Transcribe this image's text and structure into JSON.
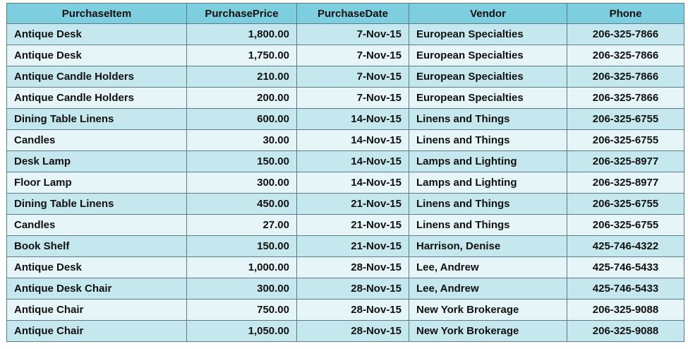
{
  "table": {
    "headers": [
      "PurchaseItem",
      "PurchasePrice",
      "PurchaseDate",
      "Vendor",
      "Phone"
    ],
    "rows": [
      [
        "Antique Desk",
        "1,800.00",
        "7-Nov-15",
        "European Specialties",
        "206-325-7866"
      ],
      [
        "Antique Desk",
        "1,750.00",
        "7-Nov-15",
        "European Specialties",
        "206-325-7866"
      ],
      [
        "Antique Candle Holders",
        "210.00",
        "7-Nov-15",
        "European Specialties",
        "206-325-7866"
      ],
      [
        "Antique Candle Holders",
        "200.00",
        "7-Nov-15",
        "European Specialties",
        "206-325-7866"
      ],
      [
        "Dining Table Linens",
        "600.00",
        "14-Nov-15",
        "Linens and Things",
        "206-325-6755"
      ],
      [
        "Candles",
        "30.00",
        "14-Nov-15",
        "Linens and Things",
        "206-325-6755"
      ],
      [
        "Desk Lamp",
        "150.00",
        "14-Nov-15",
        "Lamps and Lighting",
        "206-325-8977"
      ],
      [
        "Floor Lamp",
        "300.00",
        "14-Nov-15",
        "Lamps and Lighting",
        "206-325-8977"
      ],
      [
        "Dining Table Linens",
        "450.00",
        "21-Nov-15",
        "Linens and Things",
        "206-325-6755"
      ],
      [
        "Candles",
        "27.00",
        "21-Nov-15",
        "Linens and Things",
        "206-325-6755"
      ],
      [
        "Book Shelf",
        "150.00",
        "21-Nov-15",
        "Harrison, Denise",
        "425-746-4322"
      ],
      [
        "Antique Desk",
        "1,000.00",
        "28-Nov-15",
        "Lee, Andrew",
        "425-746-5433"
      ],
      [
        "Antique Desk Chair",
        "300.00",
        "28-Nov-15",
        "Lee, Andrew",
        "425-746-5433"
      ],
      [
        "Antique Chair",
        "750.00",
        "28-Nov-15",
        "New York Brokerage",
        "206-325-9088"
      ],
      [
        "Antique Chair",
        "1,050.00",
        "28-Nov-15",
        "New York Brokerage",
        "206-325-9088"
      ]
    ]
  },
  "colors": {
    "header_bg": "#7dcfdf",
    "row_odd_bg": "#c5e8ef",
    "row_even_bg": "#e6f5f8",
    "border": "#5a7d88"
  }
}
